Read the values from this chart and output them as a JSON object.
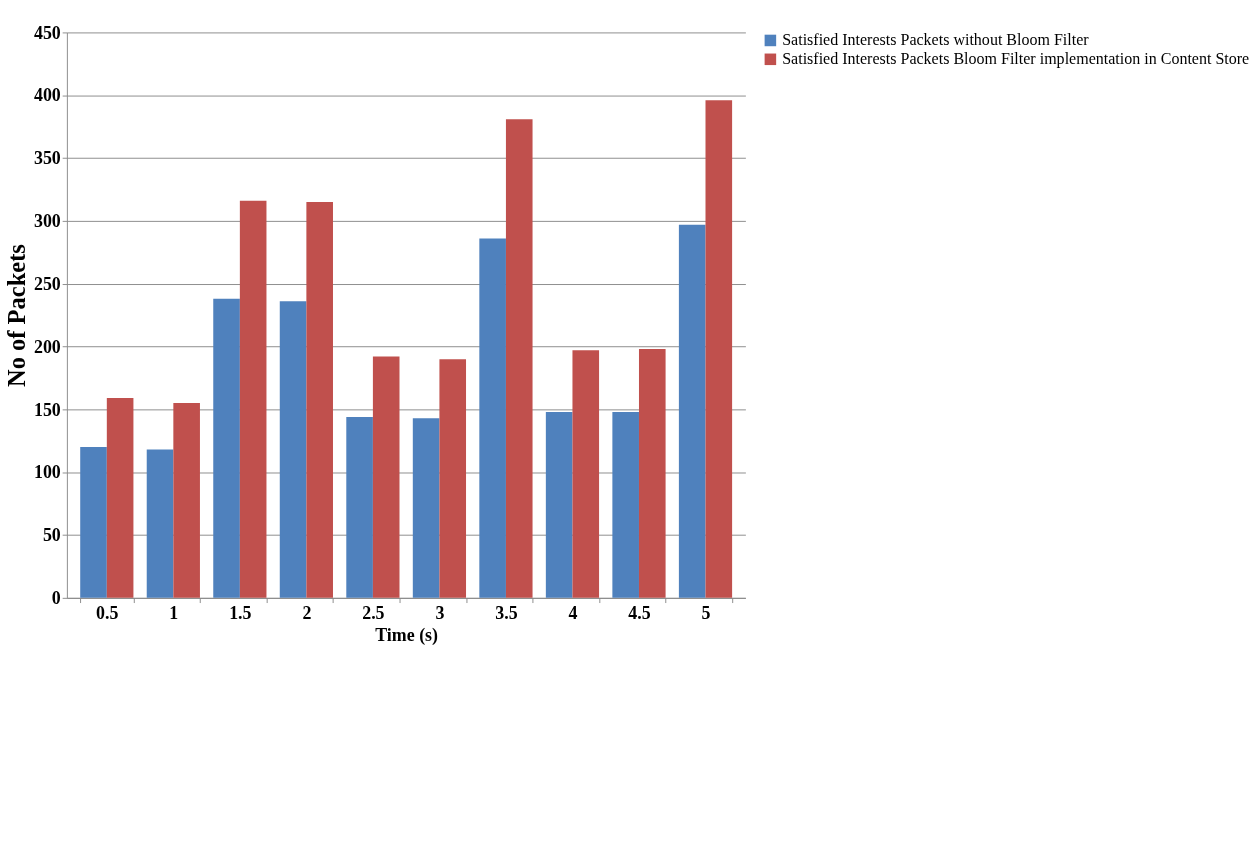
{
  "chart_data": {
    "type": "bar",
    "xlabel": "Time (s)",
    "ylabel": "No of Packets",
    "categories": [
      "0.5",
      "1",
      "1.5",
      "2",
      "2.5",
      "3",
      "3.5",
      "4",
      "4.5",
      "5"
    ],
    "series": [
      {
        "name": "Satisfied Interests Packets without Bloom Filter",
        "color": "#4f81bd",
        "values": [
          120,
          118,
          238,
          236,
          144,
          143,
          286,
          148,
          148,
          297
        ]
      },
      {
        "name": "Satisfied Interests Packets  Bloom Filter implementation in Content Store",
        "color": "#c0504d",
        "values": [
          159,
          155,
          316,
          315,
          192,
          190,
          381,
          197,
          198,
          396
        ]
      }
    ],
    "ylim": [
      0,
      450
    ],
    "yticks": [
      0,
      50,
      100,
      150,
      200,
      250,
      300,
      350,
      400,
      450
    ],
    "grid": "y",
    "legend": "right"
  }
}
